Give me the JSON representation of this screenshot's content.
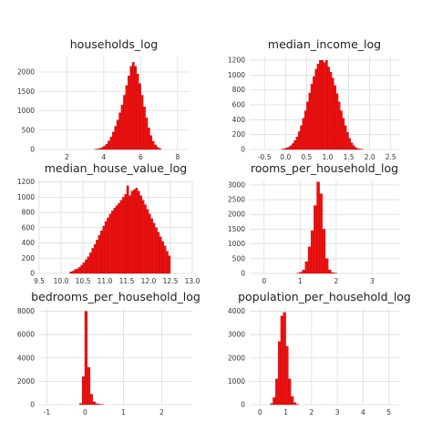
{
  "figure": {
    "background": "#ffffff",
    "bar_color": "#ee1111",
    "bar_edge_color": "#b00000",
    "grid_color": "#dcdcdc"
  },
  "chart_data": [
    {
      "type": "bar",
      "title": "households_log",
      "grid": true,
      "xlim": [
        0.5,
        8.6
      ],
      "ylim": [
        0,
        2400
      ],
      "xticks": [
        2,
        4,
        6,
        8
      ],
      "xtick_labels": [
        "2",
        "4",
        "6",
        "8"
      ],
      "yticks": [
        0,
        500,
        1000,
        1500,
        2000
      ],
      "ytick_labels": [
        "0",
        "500",
        "1000",
        "1500",
        "2000"
      ],
      "bins": {
        "start": 3.5,
        "width": 0.12,
        "values": [
          5,
          15,
          30,
          55,
          90,
          140,
          220,
          320,
          450,
          600,
          760,
          950,
          1150,
          1400,
          1650,
          1900,
          2150,
          2250,
          2150,
          1950,
          1700,
          1400,
          1100,
          820,
          560,
          360,
          210,
          120,
          60,
          25
        ]
      }
    },
    {
      "type": "bar",
      "title": "median_income_log",
      "grid": true,
      "xlim": [
        -0.85,
        2.7
      ],
      "ylim": [
        0,
        1250
      ],
      "xticks": [
        -0.5,
        0.0,
        0.5,
        1.0,
        1.5,
        2.0,
        2.5
      ],
      "xtick_labels": [
        "-0.5",
        "0.0",
        "0.5",
        "1.0",
        "1.5",
        "2.0",
        "2.5"
      ],
      "yticks": [
        0,
        200,
        400,
        600,
        800,
        1000,
        1200
      ],
      "ytick_labels": [
        "0",
        "200",
        "400",
        "600",
        "800",
        "1000",
        "1200"
      ],
      "bins": {
        "start": -0.1,
        "width": 0.05,
        "values": [
          5,
          10,
          20,
          30,
          50,
          80,
          120,
          170,
          240,
          320,
          420,
          520,
          640,
          760,
          880,
          980,
          1080,
          1150,
          1200,
          1200,
          1170,
          1200,
          1110,
          1040,
          960,
          860,
          750,
          640,
          520,
          420,
          320,
          230,
          150,
          90,
          50,
          25,
          12,
          6,
          3
        ]
      }
    },
    {
      "type": "bar",
      "title": "median_house_value_log",
      "grid": true,
      "xlim": [
        9.5,
        13.0
      ],
      "ylim": [
        0,
        1220
      ],
      "xticks": [
        9.5,
        10.0,
        10.5,
        11.0,
        11.5,
        12.0,
        12.5,
        13.0
      ],
      "xtick_labels": [
        "9.5",
        "10.0",
        "10.5",
        "11.0",
        "11.5",
        "12.0",
        "12.5",
        "13.0"
      ],
      "yticks": [
        0,
        200,
        400,
        600,
        800,
        1000,
        1200
      ],
      "ytick_labels": [
        "0",
        "200",
        "400",
        "600",
        "800",
        "1000",
        "1200"
      ],
      "bins": {
        "start": 10.2,
        "width": 0.05,
        "values": [
          20,
          30,
          50,
          60,
          80,
          110,
          140,
          180,
          220,
          270,
          330,
          380,
          440,
          500,
          560,
          620,
          680,
          730,
          780,
          820,
          860,
          890,
          920,
          960,
          1000,
          1040,
          1150,
          1020,
          1080,
          1100,
          1120,
          1080,
          1020,
          960,
          900,
          840,
          780,
          720,
          660,
          600,
          540,
          480,
          420,
          360,
          290,
          230
        ]
      }
    },
    {
      "type": "bar",
      "title": "rooms_per_household_log",
      "grid": true,
      "xlim": [
        -0.4,
        3.75
      ],
      "ylim": [
        0,
        3150
      ],
      "xticks": [
        0,
        1,
        2,
        3
      ],
      "xtick_labels": [
        "0",
        "1",
        "2",
        "3"
      ],
      "yticks": [
        0,
        500,
        1000,
        1500,
        2000,
        2500,
        3000
      ],
      "ytick_labels": [
        "0",
        "500",
        "1000",
        "1500",
        "2000",
        "2500",
        "3000"
      ],
      "bins": {
        "start": 0.9,
        "width": 0.08,
        "values": [
          10,
          40,
          120,
          400,
          900,
          1450,
          2300,
          3100,
          2700,
          1500,
          500,
          120,
          30,
          10
        ]
      }
    },
    {
      "type": "bar",
      "title": "bedrooms_per_household_log",
      "grid": true,
      "xlim": [
        -1.2,
        2.8
      ],
      "ylim": [
        0,
        8200
      ],
      "xticks": [
        -1,
        0,
        1,
        2
      ],
      "xtick_labels": [
        "-1",
        "0",
        "1",
        "2"
      ],
      "yticks": [
        0,
        2000,
        4000,
        6000,
        8000
      ],
      "ytick_labels": [
        "0",
        "2000",
        "4000",
        "6000",
        "8000"
      ],
      "bins": {
        "start": -0.15,
        "width": 0.07,
        "values": [
          100,
          2400,
          8000,
          3200,
          900,
          250,
          90,
          40,
          15
        ]
      }
    },
    {
      "type": "bar",
      "title": "population_per_household_log",
      "grid": true,
      "xlim": [
        -0.4,
        5.4
      ],
      "ylim": [
        0,
        4100
      ],
      "xticks": [
        0,
        1,
        2,
        3,
        4,
        5
      ],
      "xtick_labels": [
        "0",
        "1",
        "2",
        "3",
        "4",
        "5"
      ],
      "yticks": [
        0,
        1000,
        2000,
        3000,
        4000
      ],
      "ytick_labels": [
        "0",
        "1000",
        "2000",
        "3000",
        "4000"
      ],
      "bins": {
        "start": 0.4,
        "width": 0.1,
        "values": [
          50,
          300,
          1100,
          2700,
          3800,
          3950,
          2500,
          1100,
          350,
          90,
          20
        ]
      }
    }
  ]
}
